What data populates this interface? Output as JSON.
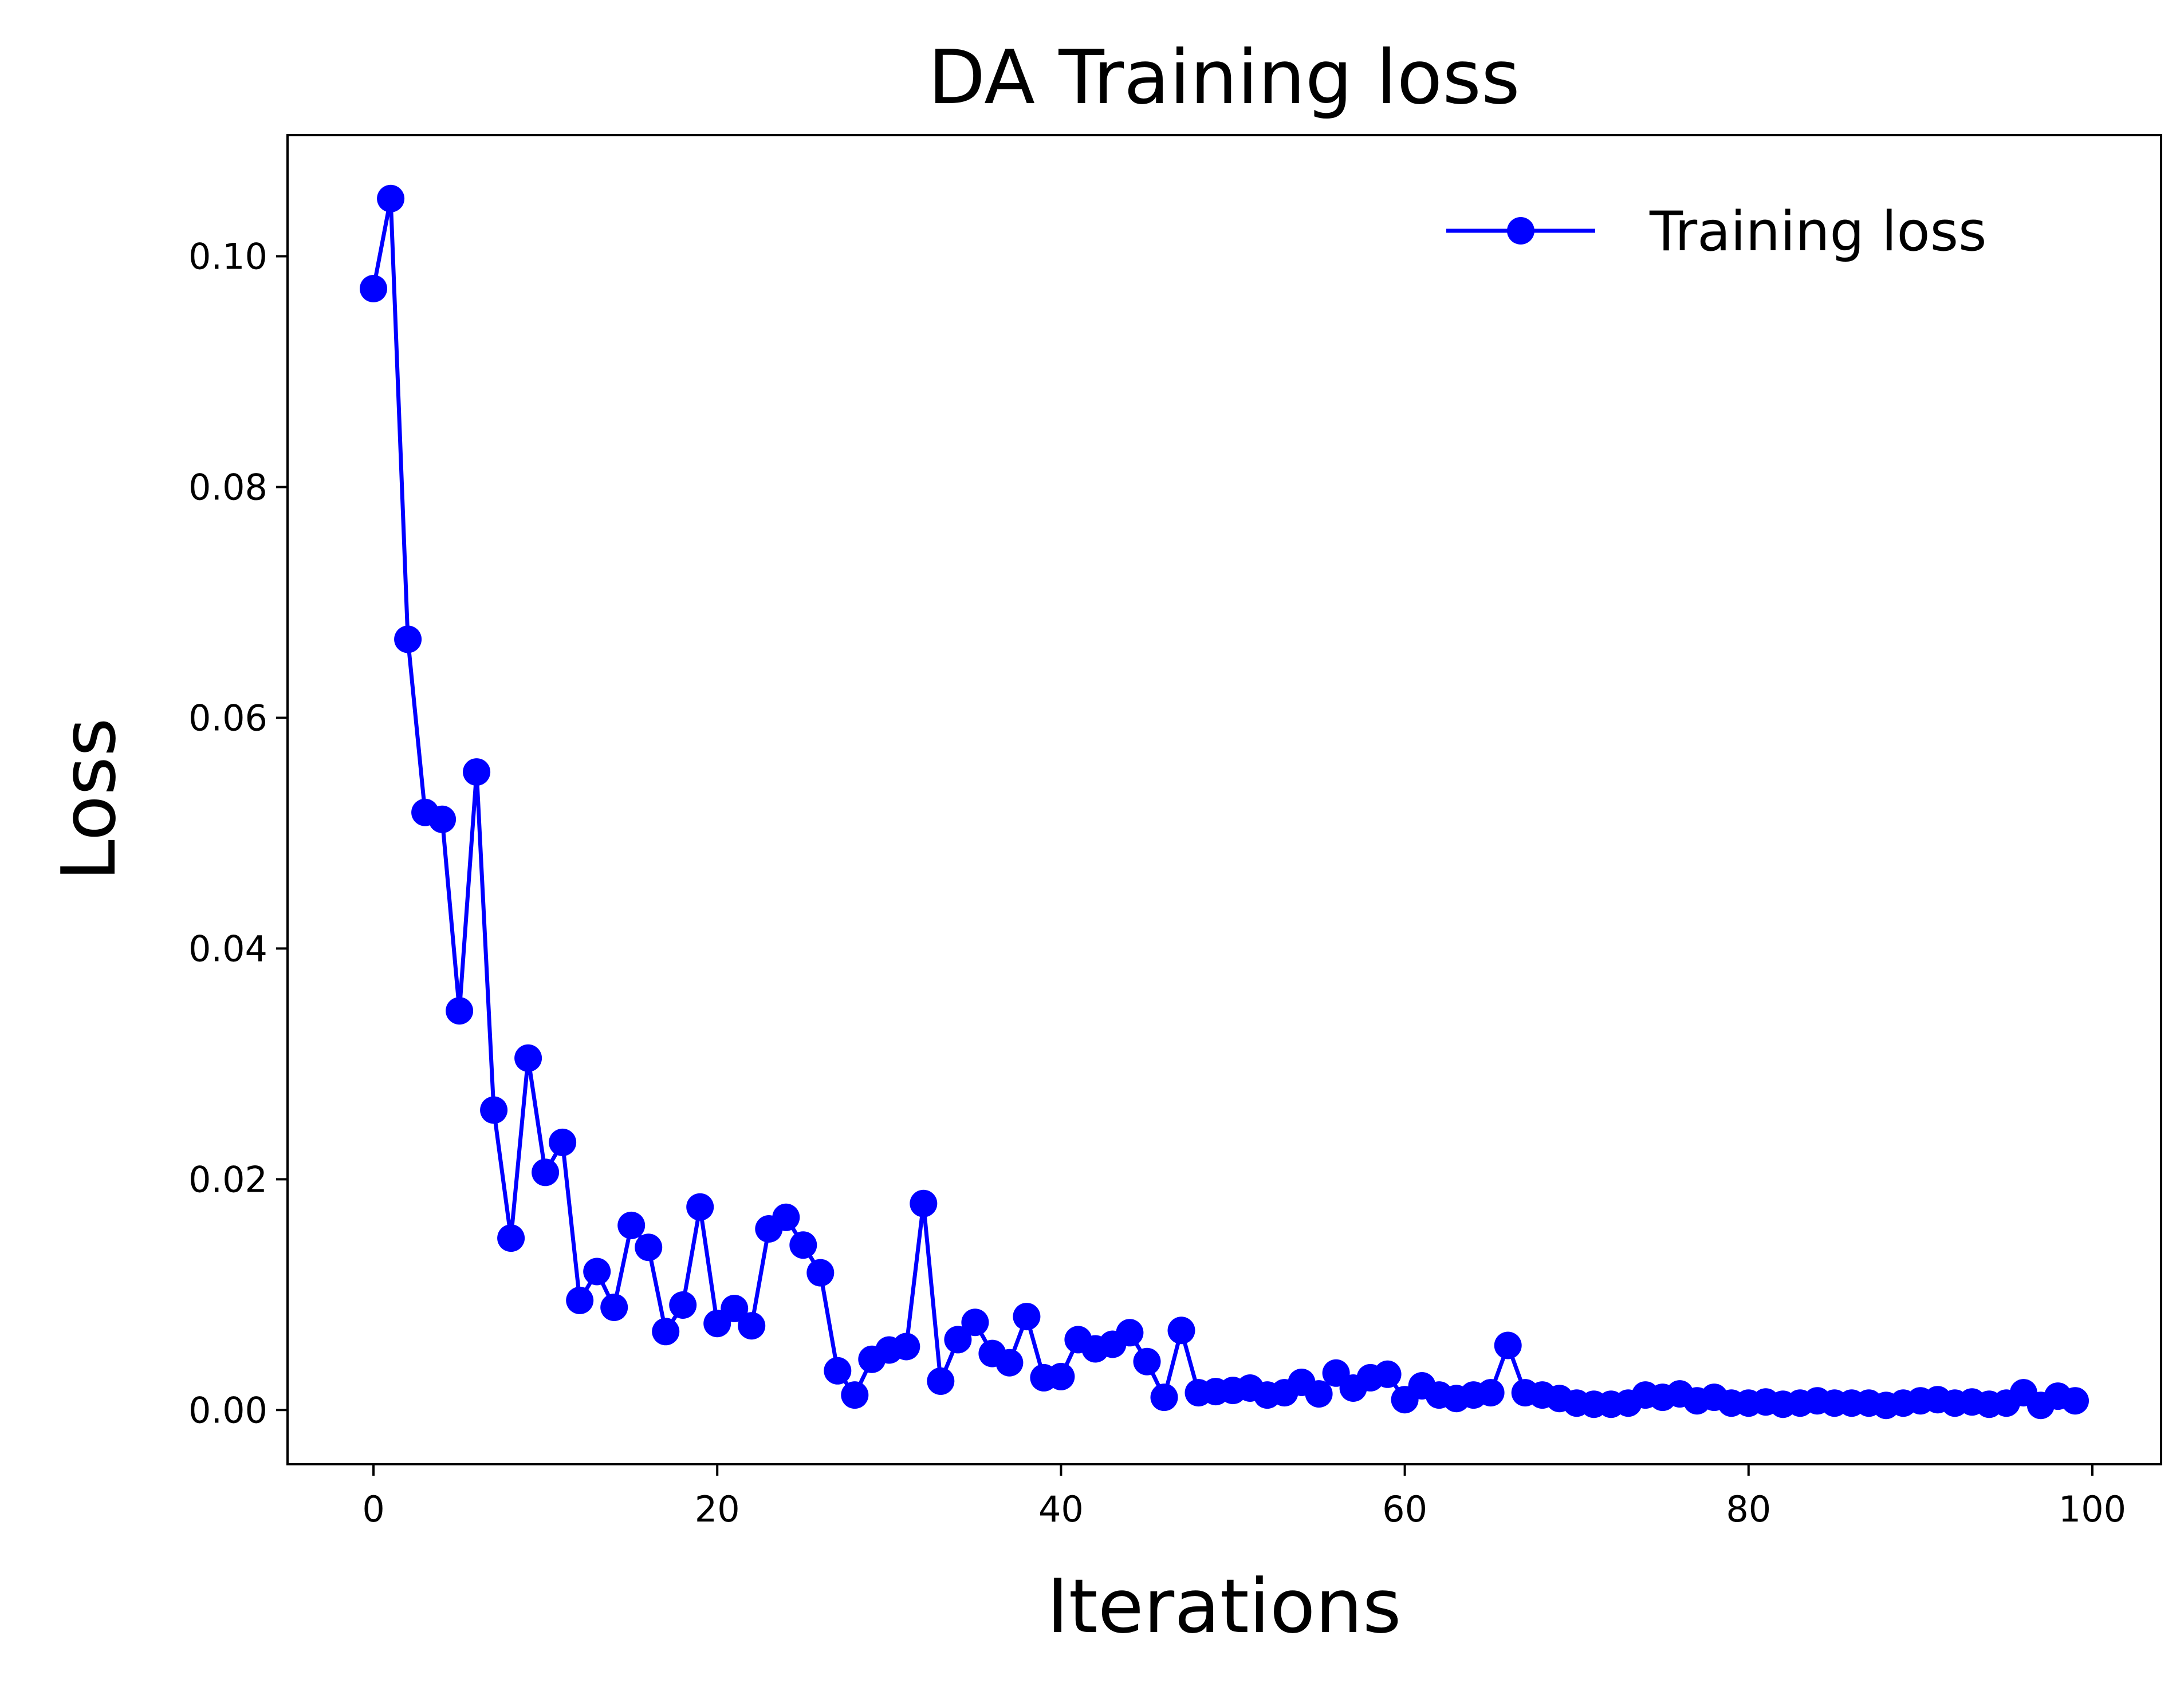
{
  "chart_data": {
    "type": "line",
    "title": "DA Training loss",
    "xlabel": "Iterations",
    "ylabel": "Loss",
    "xlim": [
      -5,
      104
    ],
    "ylim": [
      -0.0047,
      0.1105
    ],
    "xticks": [
      0,
      20,
      40,
      60,
      80,
      100
    ],
    "xtick_labels": [
      "0",
      "20",
      "40",
      "60",
      "80",
      "100"
    ],
    "yticks": [
      0.0,
      0.02,
      0.04,
      0.06,
      0.08,
      0.1
    ],
    "ytick_labels": [
      "0.00",
      "0.02",
      "0.04",
      "0.06",
      "0.08",
      "0.10"
    ],
    "grid": false,
    "legend_position": "upper right",
    "series": [
      {
        "name": "Training loss",
        "color": "#0000ff",
        "marker": "circle",
        "x": [
          0,
          1,
          2,
          3,
          4,
          5,
          6,
          7,
          8,
          9,
          10,
          11,
          12,
          13,
          14,
          15,
          16,
          17,
          18,
          19,
          20,
          21,
          22,
          23,
          24,
          25,
          26,
          27,
          28,
          29,
          30,
          31,
          32,
          33,
          34,
          35,
          36,
          37,
          38,
          39,
          40,
          41,
          42,
          43,
          44,
          45,
          46,
          47,
          48,
          49,
          50,
          51,
          52,
          53,
          54,
          55,
          56,
          57,
          58,
          59,
          60,
          61,
          62,
          63,
          64,
          65,
          66,
          67,
          68,
          69,
          70,
          71,
          72,
          73,
          74,
          75,
          76,
          77,
          78,
          79,
          80,
          81,
          82,
          83,
          84,
          85,
          86,
          87,
          88,
          89,
          90,
          91,
          92,
          93,
          94,
          95,
          96,
          97,
          98,
          99
        ],
        "values": [
          0.0972,
          0.105,
          0.0668,
          0.0518,
          0.0512,
          0.0346,
          0.0553,
          0.026,
          0.0149,
          0.0305,
          0.0206,
          0.0232,
          0.0095,
          0.012,
          0.0089,
          0.016,
          0.0141,
          0.0068,
          0.0091,
          0.0176,
          0.0075,
          0.0088,
          0.0073,
          0.0157,
          0.0167,
          0.0143,
          0.0119,
          0.0034,
          0.0013,
          0.0044,
          0.0052,
          0.0055,
          0.0179,
          0.0025,
          0.0061,
          0.0076,
          0.0049,
          0.0041,
          0.0081,
          0.0028,
          0.0029,
          0.0061,
          0.0053,
          0.0057,
          0.0067,
          0.0042,
          0.0011,
          0.0069,
          0.0015,
          0.0016,
          0.0017,
          0.0019,
          0.0013,
          0.0015,
          0.0024,
          0.0014,
          0.0032,
          0.0019,
          0.0028,
          0.0031,
          0.0009,
          0.0021,
          0.0013,
          0.001,
          0.0013,
          0.0015,
          0.0056,
          0.0015,
          0.0013,
          0.001,
          0.0006,
          0.0005,
          0.0005,
          0.0006,
          0.0013,
          0.0011,
          0.0014,
          0.0008,
          0.0011,
          0.0006,
          0.0006,
          0.0007,
          0.0005,
          0.0006,
          0.0008,
          0.0006,
          0.0006,
          0.0006,
          0.0004,
          0.0006,
          0.0008,
          0.0009,
          0.0006,
          0.0007,
          0.0005,
          0.0006,
          0.0015,
          0.0004,
          0.0012,
          0.0008
        ]
      }
    ]
  }
}
